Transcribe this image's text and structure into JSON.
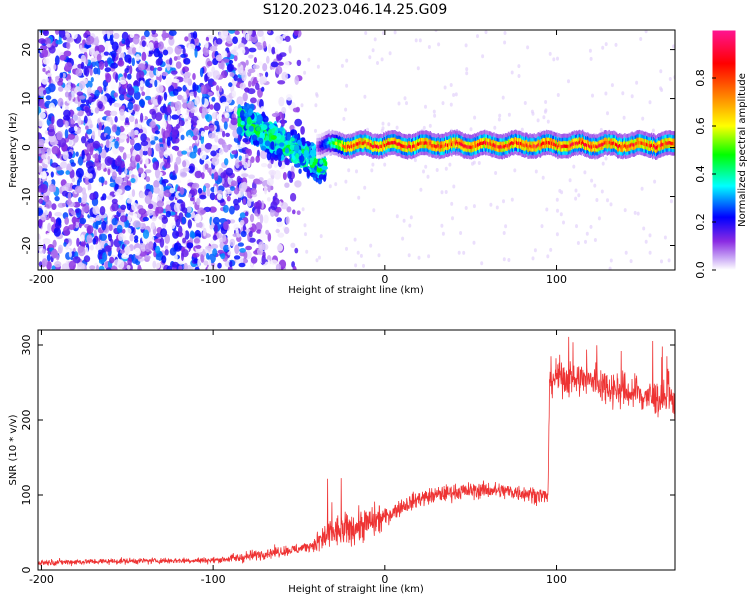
{
  "chart_title": "S120.2023.046.14.25.G09",
  "chart_data": [
    {
      "type": "heatmap",
      "xlabel": "Height of straight line (km)",
      "ylabel": "Frequency (Hz)",
      "xlim": [
        -202,
        169
      ],
      "ylim": [
        -25,
        24
      ],
      "xticks": [
        "-200",
        "-100",
        "0",
        "100"
      ],
      "yticks": [
        "-20",
        "-10",
        "0",
        "10",
        "20"
      ],
      "colorbar": {
        "label": "Normalized spectral amplitude",
        "range": [
          0.0,
          1.0
        ],
        "ticks": [
          "0.0",
          "0.2",
          "0.4",
          "0.6",
          "0.8"
        ],
        "colors": [
          "#ffffff",
          "#c9a8f5",
          "#8a2be2",
          "#0000ff",
          "#00ffff",
          "#00ff00",
          "#ffff00",
          "#ff8800",
          "#ff0000",
          "#ff1493"
        ]
      },
      "features": {
        "noise_region_x": [
          -202,
          -50
        ],
        "noise_amplitude": 0.3,
        "transition_region_x": [
          -85,
          -35
        ],
        "transition_frequency_hz": [
          6,
          -4
        ],
        "transition_amplitude": 0.45,
        "tone_region_x": [
          -40,
          169
        ],
        "tone_frequency_hz": 0.6,
        "tone_amplitude": 0.9
      }
    },
    {
      "type": "line",
      "xlabel": "Height of straight line (km)",
      "ylabel": "SNR (10 * v/v)",
      "xlim": [
        -202,
        169
      ],
      "ylim": [
        0,
        320
      ],
      "xticks": [
        "-200",
        "-100",
        "0",
        "100"
      ],
      "yticks": [
        "0",
        "100",
        "200",
        "300"
      ],
      "color": "#ee3333",
      "series_profile": {
        "x": [
          -202,
          -150,
          -100,
          -85,
          -70,
          -50,
          -40,
          -30,
          -20,
          -10,
          0,
          10,
          20,
          30,
          40,
          60,
          80,
          95,
          96,
          100,
          120,
          140,
          155,
          169
        ],
        "y": [
          10,
          12,
          13,
          16,
          22,
          28,
          35,
          50,
          55,
          62,
          70,
          85,
          95,
          100,
          104,
          107,
          103,
          98,
          255,
          258,
          252,
          238,
          230,
          225
        ]
      }
    }
  ]
}
